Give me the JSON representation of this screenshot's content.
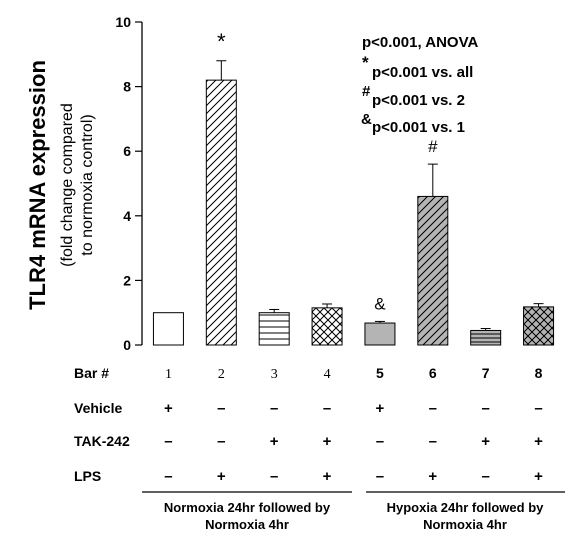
{
  "chart_data": {
    "type": "bar",
    "ylabel": "TLR4 mRNA expression",
    "ylabel_sub1": "(fold change compared",
    "ylabel_sub2": "to normoxia control)",
    "ylim": [
      0,
      10
    ],
    "yticks": [
      "0",
      "2",
      "4",
      "6",
      "8",
      "10"
    ],
    "categories": [
      "1",
      "2",
      "3",
      "4",
      "5",
      "6",
      "7",
      "8"
    ],
    "values": [
      1.0,
      8.2,
      1.0,
      1.15,
      0.68,
      4.6,
      0.45,
      1.18
    ],
    "errors": [
      0,
      0.6,
      0.1,
      0.12,
      0.05,
      1.0,
      0.06,
      0.1
    ],
    "patterns": [
      "white",
      "diag-light",
      "hlines",
      "crosshatch",
      "gray",
      "diag-gray",
      "hlines-gray",
      "crosshatch-gray"
    ],
    "bar_annotations": [
      "",
      "*",
      "",
      "",
      "&",
      "#",
      "",
      ""
    ],
    "stats_text": {
      "line1": "p<0.001, ANOVA",
      "line2_sym": "*",
      "line2": "p<0.001 vs. all",
      "line3_sym": "#",
      "line3": "p<0.001 vs. 2",
      "line4_sym": "&",
      "line4": "p<0.001 vs. 1"
    },
    "condition_rows": [
      {
        "label": "Bar #",
        "values": [
          "1",
          "2",
          "3",
          "4",
          "5",
          "6",
          "7",
          "8"
        ]
      },
      {
        "label": "Vehicle",
        "values": [
          "+",
          "–",
          "–",
          "–",
          "+",
          "–",
          "–",
          "–"
        ]
      },
      {
        "label": "TAK-242",
        "values": [
          "–",
          "–",
          "+",
          "+",
          "–",
          "–",
          "+",
          "+"
        ]
      },
      {
        "label": "LPS",
        "values": [
          "–",
          "+",
          "–",
          "+",
          "–",
          "+",
          "–",
          "+"
        ]
      }
    ],
    "groups": [
      {
        "line1": "Normoxia 24hr followed by",
        "line2": "Normoxia 4hr"
      },
      {
        "line1": "Hypoxia 24hr followed by",
        "line2": "Normoxia 4hr"
      }
    ],
    "colors": {
      "gray_fill": "#b4b4b4",
      "white_fill": "#ffffff",
      "stroke": "#000000"
    }
  }
}
